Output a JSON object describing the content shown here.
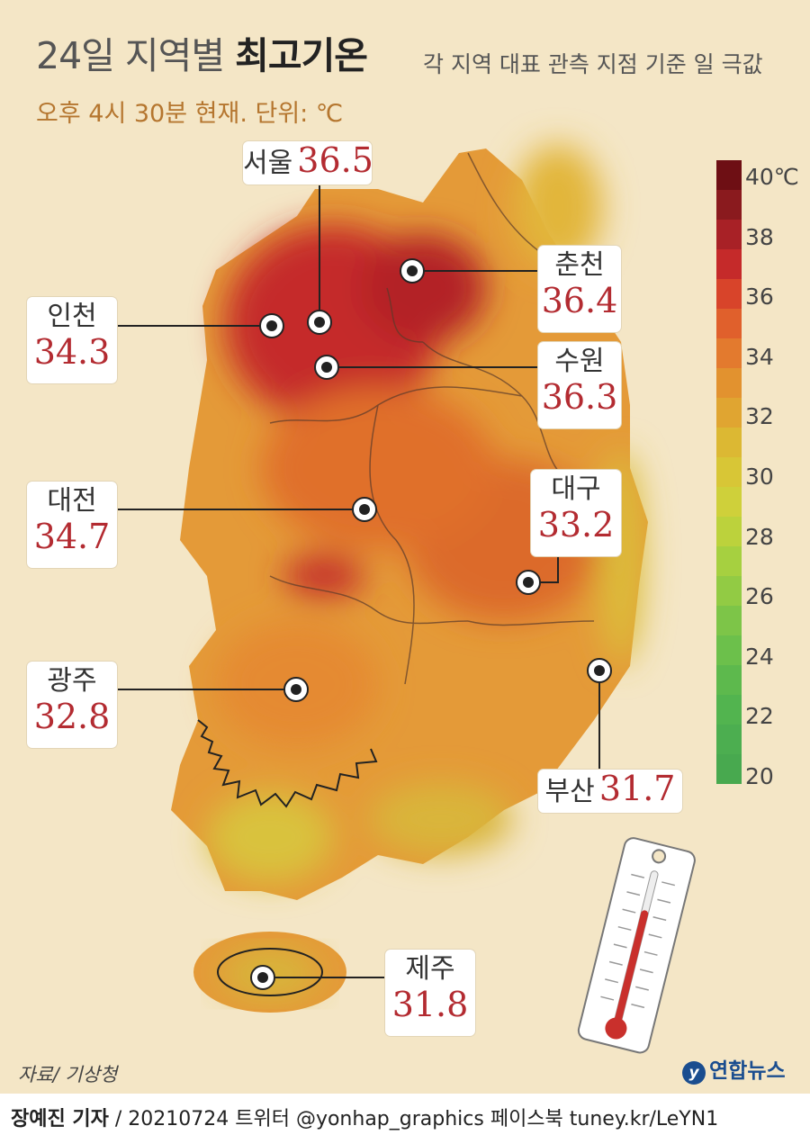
{
  "header": {
    "title_plain": "24일 지역별 ",
    "title_bold": "최고기온",
    "subtitle": "오후 4시 30분 현재. 단위: ℃",
    "note": "각 지역 대표 관측 지점 기준 일 극값"
  },
  "cities": [
    {
      "name": "서울",
      "value": "36.5"
    },
    {
      "name": "춘천",
      "value": "36.4"
    },
    {
      "name": "인천",
      "value": "34.3"
    },
    {
      "name": "수원",
      "value": "36.3"
    },
    {
      "name": "대전",
      "value": "34.7"
    },
    {
      "name": "대구",
      "value": "33.2"
    },
    {
      "name": "광주",
      "value": "32.8"
    },
    {
      "name": "부산",
      "value": "31.7"
    },
    {
      "name": "제주",
      "value": "31.8"
    }
  ],
  "legend": {
    "ticks": [
      "40℃",
      "38",
      "36",
      "34",
      "32",
      "30",
      "28",
      "26",
      "24",
      "22",
      "20"
    ],
    "colors": [
      "#6e0f14",
      "#8a1a1e",
      "#a82126",
      "#c52a2a",
      "#d8442a",
      "#e0602c",
      "#e37a2e",
      "#e2922f",
      "#e0a531",
      "#dcb833",
      "#d8c636",
      "#cfd03a",
      "#bcd23c",
      "#a6d040",
      "#92cb44",
      "#7dc548",
      "#6cc04b",
      "#5db94d",
      "#52b44f",
      "#4cae50",
      "#48a94f"
    ]
  },
  "colors": {
    "hot": "#c52a2a",
    "warm": "#e07a2e",
    "mild": "#d9b13a",
    "value_text": "#b32b31"
  },
  "footer": {
    "source": "자료/ 기상청",
    "logo": "연합뉴스",
    "reporter": "장예진 기자",
    "credit": " / 20210724 트위터 @yonhap_graphics  페이스북 tuney.kr/LeYN1"
  }
}
